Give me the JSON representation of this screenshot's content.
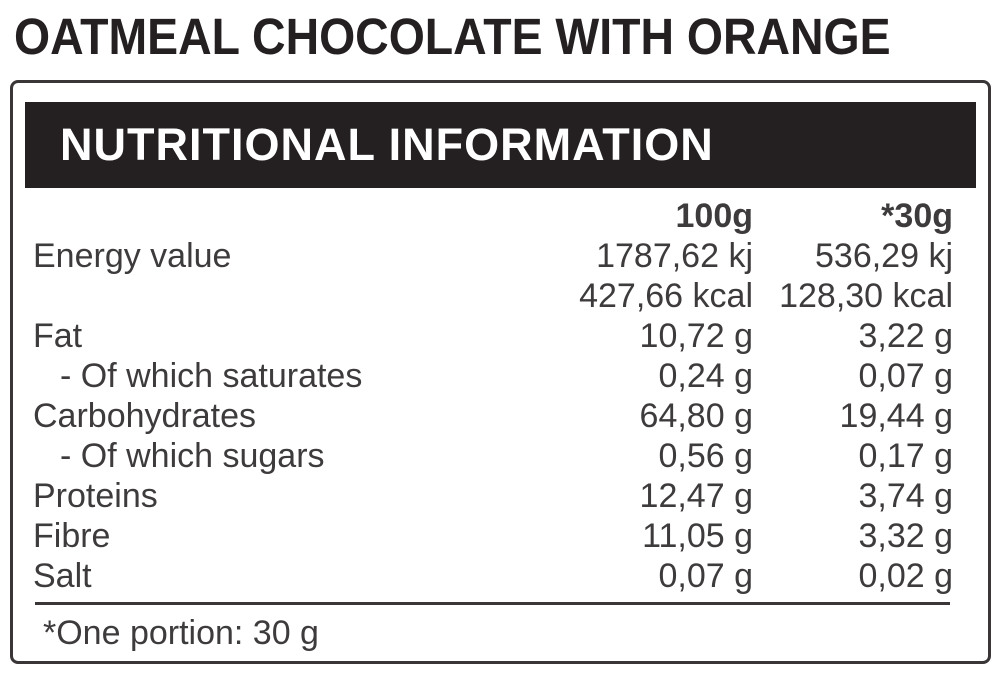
{
  "product_title": "OATMEAL CHOCOLATE WITH ORANGE",
  "panel_title": "NUTRITIONAL INFORMATION",
  "table": {
    "col_headers": [
      "100g",
      "*30g"
    ],
    "rows": [
      {
        "label": "Energy value",
        "per_100g": "1787,62 kj",
        "per_30g": "536,29 kj"
      },
      {
        "label": "",
        "per_100g": "427,66 kcal",
        "per_30g": "128,30 kcal"
      },
      {
        "label": "Fat",
        "per_100g": "10,72 g",
        "per_30g": "3,22 g"
      },
      {
        "label": "- Of which saturates",
        "per_100g": "0,24 g",
        "per_30g": "0,07 g"
      },
      {
        "label": "Carbohydrates",
        "per_100g": "64,80 g",
        "per_30g": "19,44 g"
      },
      {
        "label": "- Of which sugars",
        "per_100g": "0,56 g",
        "per_30g": "0,17 g"
      },
      {
        "label": "Proteins",
        "per_100g": "12,47 g",
        "per_30g": "3,74 g"
      },
      {
        "label": "Fibre",
        "per_100g": "11,05 g",
        "per_30g": "3,32 g"
      },
      {
        "label": "Salt",
        "per_100g": "0,07 g",
        "per_30g": "0,02 g"
      }
    ]
  },
  "footnote": "*One portion: 30 g",
  "colors": {
    "ink_black": "#242021",
    "text_gray": "#3e3b3c",
    "background": "#ffffff"
  }
}
